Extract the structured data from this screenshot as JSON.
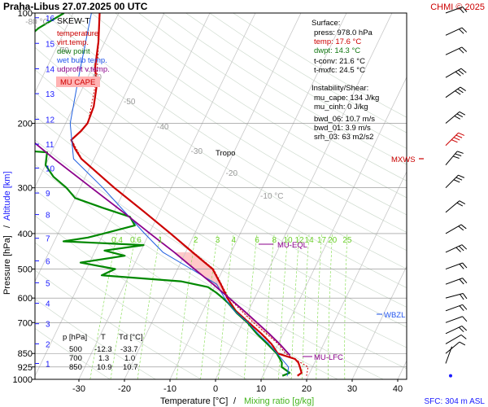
{
  "header": {
    "title": "Praha-Libus   27.07.2025 00 UTC",
    "credit": "CHMI © 2025"
  },
  "colors": {
    "temperature": "#cc0000",
    "virt_temp": "#cc0000",
    "dew_point": "#008800",
    "wet_bulb": "#1e5fe0",
    "udprofit": "#8b008b",
    "isotherm": "#c8c8c8",
    "mixing_ratio": "#7fdc4a",
    "grid": "#888888",
    "cape_fill": "#ffb0b0"
  },
  "legend": {
    "title": "SKEW-T",
    "items": [
      {
        "label": "temperature",
        "color": "#cc0000"
      },
      {
        "label": "virt.temp.",
        "color": "#cc0000"
      },
      {
        "label": "dew point",
        "color": "#008800"
      },
      {
        "label": "wet bulb temp.",
        "color": "#1e5fe0"
      },
      {
        "label": "udprofit v.temp.",
        "color": "#8b008b"
      }
    ],
    "badge": "MU CAPE"
  },
  "surface": {
    "title": "Surface:",
    "lines": [
      {
        "text": "press: 978.0 hPa",
        "color": "#000000"
      },
      {
        "text": "temp: 17.6 °C",
        "color": "#cc0000"
      },
      {
        "text": "dwpt: 14.3 °C",
        "color": "#117711"
      },
      {
        "text": "t-conv: 21.6 °C",
        "color": "#000000"
      },
      {
        "text": "t-mxfc: 24.5 °C",
        "color": "#000000"
      }
    ]
  },
  "instability": {
    "title": "Instability/Shear:",
    "lines": [
      "mu_cape: 134 J/kg",
      "mu_cinh: 0 J/kg",
      "bwd_06: 10.7 m/s",
      "bwd_01: 3.9 m/s",
      "srh_03: 63 m2/s2"
    ]
  },
  "table": {
    "headers": [
      "p [hPa]",
      "T",
      "Td [°C]"
    ],
    "rows": [
      [
        "500",
        "-12.3",
        "-33.7"
      ],
      [
        "700",
        "1.3",
        "1.0"
      ],
      [
        "850",
        "10.9",
        "10.7"
      ]
    ]
  },
  "annotations": {
    "tropo": "Tropo",
    "mu_eql": "MU-EQL",
    "mu_lfc": "MU-LFC",
    "wbzl": "WBZL",
    "mxws": "MXWS",
    "sfc": "SFC: 304 m ASL"
  },
  "axes": {
    "xlabel_temp": "Temperature [°C]",
    "xlabel_sep": "/",
    "xlabel_mix": "Mixing ratio [g/kg]",
    "ylabel_left": "Pressure [hPa]",
    "ylabel_sep": "/",
    "ylabel_right": "Altitude [km]"
  },
  "chart_data": {
    "type": "line",
    "xlim": [
      -35,
      45
    ],
    "ylim": [
      1000,
      100
    ],
    "pressure_ticks": [
      100,
      200,
      300,
      400,
      500,
      600,
      700,
      850,
      925,
      1000
    ],
    "temp_ticks": [
      -30,
      -20,
      -10,
      0,
      10,
      20,
      30,
      40
    ],
    "altitude_ticks": [
      {
        "km": 1,
        "p": 905
      },
      {
        "km": 2,
        "p": 800
      },
      {
        "km": 3,
        "p": 705
      },
      {
        "km": 4,
        "p": 620
      },
      {
        "km": 5,
        "p": 545
      },
      {
        "km": 6,
        "p": 475
      },
      {
        "km": 7,
        "p": 412
      },
      {
        "km": 8,
        "p": 355
      },
      {
        "km": 9,
        "p": 310
      },
      {
        "km": 10,
        "p": 265
      },
      {
        "km": 11,
        "p": 228
      },
      {
        "km": 12,
        "p": 195
      },
      {
        "km": 13,
        "p": 166
      },
      {
        "km": 14,
        "p": 142
      },
      {
        "km": 15,
        "p": 121
      },
      {
        "km": 16,
        "p": 103
      }
    ],
    "isotherm_labels": [
      {
        "t": -80,
        "text": "-80 °C"
      },
      {
        "t": -70,
        "text": "-70"
      },
      {
        "t": -60,
        "text": "-60"
      },
      {
        "t": -50,
        "text": "-50"
      },
      {
        "t": -40,
        "text": "-40"
      },
      {
        "t": -30,
        "text": "-30"
      },
      {
        "t": -20,
        "text": "-20"
      },
      {
        "t": -10,
        "text": "-10 °C"
      }
    ],
    "mixing_ratio_labels": [
      "0.4",
      "0.6",
      "1",
      "2",
      "3",
      "4",
      "6",
      "8",
      "10",
      "12",
      "14",
      "17",
      "20",
      "25"
    ],
    "series": [
      {
        "name": "temperature",
        "color": "#cc0000",
        "points": [
          [
            978,
            17.6
          ],
          [
            960,
            18.2
          ],
          [
            925,
            17.2
          ],
          [
            900,
            16.4
          ],
          [
            880,
            15.3
          ],
          [
            850,
            10.9
          ],
          [
            820,
            9.5
          ],
          [
            800,
            8.5
          ],
          [
            750,
            5.2
          ],
          [
            700,
            1.3
          ],
          [
            650,
            -2.8
          ],
          [
            600,
            -6.0
          ],
          [
            550,
            -8.9
          ],
          [
            500,
            -12.3
          ],
          [
            450,
            -18.5
          ],
          [
            400,
            -25.3
          ],
          [
            350,
            -33.2
          ],
          [
            300,
            -42.5
          ],
          [
            250,
            -52.8
          ],
          [
            235,
            -55.2
          ],
          [
            222,
            -57.0
          ],
          [
            210,
            -55.8
          ],
          [
            200,
            -55.2
          ],
          [
            180,
            -55.6
          ],
          [
            160,
            -57.0
          ],
          [
            140,
            -59.5
          ],
          [
            120,
            -61.4
          ],
          [
            100,
            -64.2
          ]
        ]
      },
      {
        "name": "virt.temp.",
        "color": "#cc0000",
        "points": [
          [
            978,
            19.6
          ],
          [
            925,
            19.0
          ],
          [
            850,
            12.6
          ],
          [
            800,
            10.0
          ],
          [
            700,
            2.3
          ],
          [
            600,
            -5.7
          ],
          [
            500,
            -12.1
          ],
          [
            400,
            -25.2
          ],
          [
            300,
            -42.4
          ],
          [
            250,
            -52.7
          ],
          [
            222,
            -56.9
          ],
          [
            200,
            -55.1
          ],
          [
            150,
            -58.0
          ],
          [
            100,
            -64.1
          ]
        ]
      },
      {
        "name": "dew point",
        "color": "#008800",
        "points": [
          [
            978,
            14.3
          ],
          [
            960,
            15.6
          ],
          [
            925,
            13.2
          ],
          [
            900,
            12.8
          ],
          [
            880,
            12.0
          ],
          [
            850,
            10.7
          ],
          [
            800,
            7.6
          ],
          [
            750,
            4.2
          ],
          [
            700,
            1.0
          ],
          [
            660,
            -2.3
          ],
          [
            620,
            -5.2
          ],
          [
            600,
            -7.0
          ],
          [
            580,
            -9.0
          ],
          [
            560,
            -11.4
          ],
          [
            540,
            -18.0
          ],
          [
            520,
            -36.0
          ],
          [
            500,
            -33.7
          ],
          [
            480,
            -42.0
          ],
          [
            460,
            -33.0
          ],
          [
            445,
            -38.0
          ],
          [
            430,
            -30.0
          ],
          [
            420,
            -48.0
          ],
          [
            410,
            -43.0
          ],
          [
            400,
            -40.0
          ],
          [
            380,
            -34.0
          ],
          [
            360,
            -36.0
          ],
          [
            340,
            -43.0
          ],
          [
            320,
            -50.0
          ],
          [
            300,
            -53.0
          ],
          [
            280,
            -57.0
          ],
          [
            260,
            -60.0
          ],
          [
            240,
            -61.0
          ],
          [
            235,
            -72.0
          ],
          [
            225,
            -79.0
          ],
          [
            210,
            -79.0
          ],
          [
            195,
            -80.0
          ],
          [
            180,
            -80.0
          ],
          [
            165,
            -83.0
          ],
          [
            150,
            -81.0
          ],
          [
            135,
            -80.0
          ],
          [
            120,
            -78.0
          ],
          [
            110,
            -76.0
          ],
          [
            100,
            -72.0
          ]
        ]
      },
      {
        "name": "wet bulb temp.",
        "color": "#1e5fe0",
        "points": [
          [
            978,
            15.4
          ],
          [
            925,
            14.7
          ],
          [
            850,
            10.8
          ],
          [
            800,
            7.9
          ],
          [
            750,
            4.5
          ],
          [
            700,
            1.1
          ],
          [
            650,
            -3.1
          ],
          [
            600,
            -6.6
          ],
          [
            550,
            -9.8
          ],
          [
            500,
            -17.0
          ],
          [
            450,
            -25.0
          ],
          [
            400,
            -31.0
          ],
          [
            350,
            -37.5
          ],
          [
            300,
            -45.0
          ],
          [
            250,
            -54.5
          ],
          [
            200,
            -59.0
          ],
          [
            150,
            -62.0
          ],
          [
            100,
            -66.0
          ]
        ]
      },
      {
        "name": "udprofit v.temp.",
        "color": "#8b008b",
        "points": [
          [
            860,
            13.8
          ],
          [
            800,
            10.3
          ],
          [
            750,
            6.9
          ],
          [
            700,
            3.1
          ],
          [
            650,
            -1.0
          ],
          [
            600,
            -5.6
          ],
          [
            550,
            -10.6
          ],
          [
            500,
            -16.3
          ],
          [
            450,
            -22.5
          ],
          [
            400,
            -29.8
          ],
          [
            350,
            -37.9
          ],
          [
            300,
            -47.5
          ],
          [
            250,
            -58.8
          ],
          [
            200,
            -72.0
          ],
          [
            150,
            -88.0
          ],
          [
            100,
            -105.0
          ]
        ]
      }
    ]
  }
}
